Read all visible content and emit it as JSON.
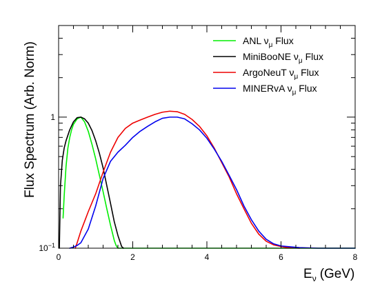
{
  "chart_data": {
    "type": "line",
    "title": "",
    "xlabel": "E",
    "xlabel_sub": "ν",
    "xlabel_units": "(GeV)",
    "ylabel": "Flux Spectrum (Arb. Norm)",
    "xlim": [
      0,
      8
    ],
    "ylim": [
      0.1,
      5
    ],
    "yscale": "log",
    "x_ticks": [
      0,
      2,
      4,
      6,
      8
    ],
    "y_tick_labels": [
      {
        "value": 1,
        "label": "1"
      },
      {
        "value": 0.1,
        "label": "10",
        "exp": "−1"
      }
    ],
    "grid": false,
    "legend_position": "top-right",
    "series": [
      {
        "name": "ANL νμ Flux",
        "legend_base": "ANL ",
        "legend_nu": "ν",
        "legend_sub": "μ",
        "legend_tail": " Flux",
        "color": "#00ee00",
        "x": [
          0.12,
          0.15,
          0.2,
          0.25,
          0.3,
          0.35,
          0.4,
          0.5,
          0.6,
          0.7,
          0.8,
          0.9,
          1.0,
          1.1,
          1.2,
          1.3,
          1.4,
          1.5,
          1.55,
          1.6,
          1.65,
          1.7,
          2.0,
          3.0,
          4.0,
          5.0,
          6.0,
          7.0,
          8.0
        ],
        "y": [
          0.17,
          0.25,
          0.42,
          0.58,
          0.7,
          0.8,
          0.88,
          0.97,
          1.0,
          0.92,
          0.78,
          0.62,
          0.48,
          0.36,
          0.27,
          0.2,
          0.15,
          0.115,
          0.105,
          0.1,
          0.1,
          0.1,
          0.1,
          0.1,
          0.1,
          0.1,
          0.1,
          0.1,
          0.1
        ]
      },
      {
        "name": "MiniBooNE νμ Flux",
        "legend_base": "MiniBooNE ",
        "legend_nu": "ν",
        "legend_sub": "μ",
        "legend_tail": " Flux",
        "color": "#000000",
        "x": [
          0.02,
          0.05,
          0.1,
          0.15,
          0.2,
          0.3,
          0.4,
          0.5,
          0.6,
          0.7,
          0.8,
          0.9,
          1.0,
          1.1,
          1.2,
          1.3,
          1.4,
          1.5,
          1.6,
          1.7,
          1.75
        ],
        "y": [
          0.1,
          0.3,
          0.47,
          0.58,
          0.66,
          0.8,
          0.92,
          0.99,
          1.0,
          0.97,
          0.9,
          0.79,
          0.66,
          0.53,
          0.41,
          0.3,
          0.22,
          0.16,
          0.125,
          0.103,
          0.1
        ]
      },
      {
        "name": "ArgoNeuT νμ Flux",
        "legend_base": "ArgoNeuT ",
        "legend_nu": "ν",
        "legend_sub": "μ",
        "legend_tail": " Flux",
        "color": "#ee0000",
        "x": [
          0.45,
          0.5,
          0.6,
          0.7,
          0.8,
          1.0,
          1.2,
          1.4,
          1.6,
          1.8,
          2.0,
          2.2,
          2.4,
          2.6,
          2.8,
          3.0,
          3.2,
          3.4,
          3.6,
          3.8,
          4.0,
          4.2,
          4.4,
          4.6,
          4.8,
          5.0,
          5.2,
          5.4,
          5.6,
          5.8,
          6.0,
          6.2,
          6.5
        ],
        "y": [
          0.1,
          0.11,
          0.135,
          0.16,
          0.19,
          0.26,
          0.38,
          0.54,
          0.7,
          0.82,
          0.9,
          0.95,
          1.0,
          1.05,
          1.09,
          1.11,
          1.1,
          1.05,
          0.96,
          0.85,
          0.72,
          0.58,
          0.45,
          0.35,
          0.26,
          0.2,
          0.155,
          0.128,
          0.113,
          0.106,
          0.103,
          0.101,
          0.1
        ]
      },
      {
        "name": "MINERvA νμ Flux",
        "legend_base": "MINERvA ",
        "legend_nu": "ν",
        "legend_sub": "μ",
        "legend_tail": " Flux",
        "color": "#0000ee",
        "x": [
          0.3,
          0.4,
          0.5,
          0.6,
          0.8,
          1.0,
          1.2,
          1.4,
          1.6,
          1.8,
          2.0,
          2.2,
          2.4,
          2.6,
          2.8,
          3.0,
          3.2,
          3.4,
          3.6,
          3.8,
          4.0,
          4.2,
          4.4,
          4.6,
          4.8,
          5.0,
          5.2,
          5.4,
          5.6,
          5.8,
          6.0,
          6.5,
          7.0,
          8.0
        ],
        "y": [
          0.1,
          0.102,
          0.105,
          0.11,
          0.14,
          0.21,
          0.34,
          0.46,
          0.54,
          0.61,
          0.7,
          0.78,
          0.85,
          0.92,
          0.98,
          1.0,
          1.0,
          0.97,
          0.89,
          0.8,
          0.69,
          0.57,
          0.46,
          0.36,
          0.28,
          0.21,
          0.165,
          0.135,
          0.117,
          0.108,
          0.104,
          0.101,
          0.1,
          0.1
        ]
      }
    ]
  }
}
